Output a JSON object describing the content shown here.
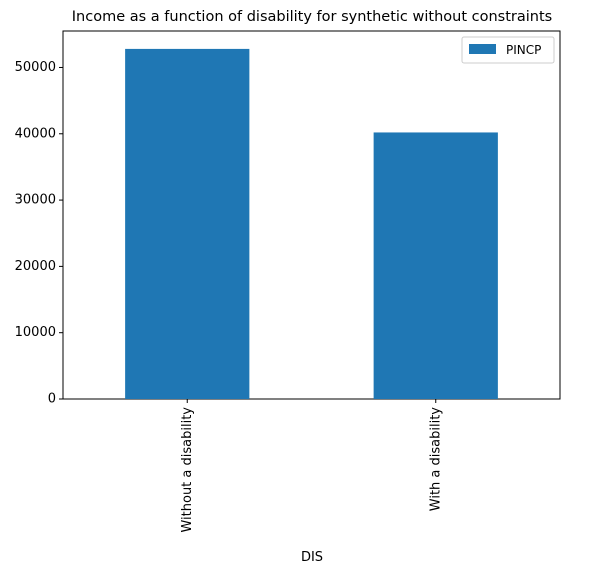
{
  "chart_data": {
    "type": "bar",
    "title": "Income as a function of disability for synthetic without constraints",
    "xlabel": "DIS",
    "ylabel": "",
    "categories": [
      "Without a disability",
      "With a disability"
    ],
    "series": [
      {
        "name": "PINCP",
        "values": [
          52800,
          40200
        ],
        "color": "#1f77b4"
      }
    ],
    "ylim": [
      0,
      55500
    ],
    "yticks": [
      0,
      10000,
      20000,
      30000,
      40000,
      50000
    ],
    "ytick_labels": [
      "0",
      "10000",
      "20000",
      "30000",
      "40000",
      "50000"
    ],
    "legend": {
      "position": "top-right",
      "entries": [
        "PINCP"
      ]
    },
    "grid": false
  }
}
